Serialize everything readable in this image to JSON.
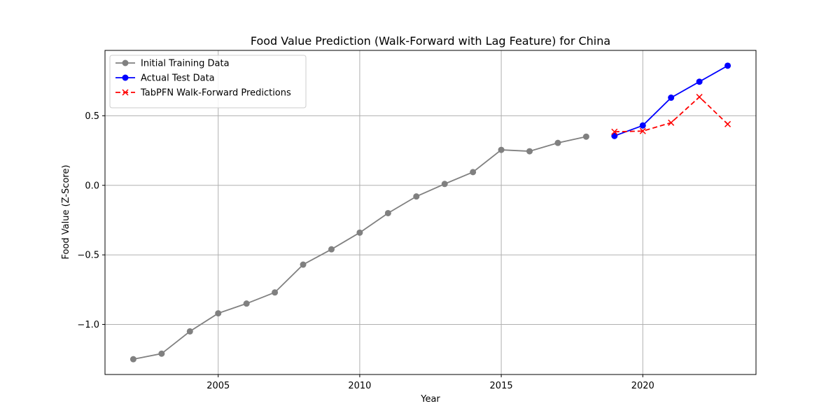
{
  "chart_data": {
    "type": "line",
    "title": "Food Value Prediction (Walk-Forward with Lag Feature) for China",
    "xlabel": "Year",
    "ylabel": "Food Value (Z-Score)",
    "xlim": [
      2001,
      2024
    ],
    "ylim": [
      -1.36,
      0.97
    ],
    "xticks": [
      2005,
      2010,
      2015,
      2020
    ],
    "xtick_labels": [
      "2005",
      "2010",
      "2015",
      "2020"
    ],
    "yticks": [
      -1.0,
      -0.5,
      0.0,
      0.5
    ],
    "ytick_labels": [
      "−1.0",
      "−0.5",
      "0.0",
      "0.5"
    ],
    "grid": true,
    "legend_position": "top-left",
    "series": [
      {
        "name": "Initial Training Data",
        "color": "#808080",
        "marker": "circle",
        "linestyle": "solid",
        "x": [
          2002,
          2003,
          2004,
          2005,
          2006,
          2007,
          2008,
          2009,
          2010,
          2011,
          2012,
          2013,
          2014,
          2015,
          2016,
          2017,
          2018
        ],
        "y": [
          -1.25,
          -1.21,
          -1.05,
          -0.92,
          -0.85,
          -0.77,
          -0.57,
          -0.46,
          -0.34,
          -0.2,
          -0.08,
          0.01,
          0.095,
          0.255,
          0.245,
          0.305,
          0.35
        ]
      },
      {
        "name": "Actual Test Data",
        "color": "#0000ff",
        "marker": "circle",
        "linestyle": "solid",
        "x": [
          2019,
          2020,
          2021,
          2022,
          2023
        ],
        "y": [
          0.355,
          0.43,
          0.63,
          0.745,
          0.86
        ]
      },
      {
        "name": "TabPFN Walk-Forward Predictions",
        "color": "#ff0000",
        "marker": "x",
        "linestyle": "dashed",
        "x": [
          2019,
          2020,
          2021,
          2022,
          2023
        ],
        "y": [
          0.385,
          0.39,
          0.45,
          0.635,
          0.44
        ]
      }
    ]
  }
}
